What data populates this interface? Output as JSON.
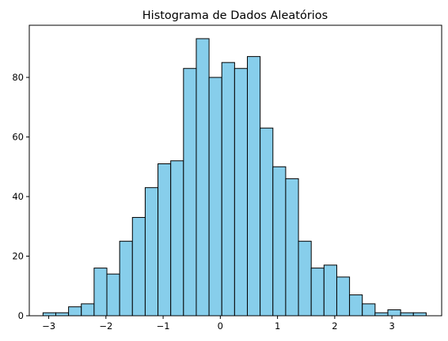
{
  "chart_data": {
    "type": "bar",
    "title": "Histograma de Dados Aleatórios",
    "xlabel": "",
    "ylabel": "",
    "xlim": [
      -3.34,
      3.87
    ],
    "ylim": [
      0,
      97.5
    ],
    "bin_start": -3.1,
    "bin_width": 0.2233,
    "counts": [
      1,
      1,
      3,
      4,
      16,
      14,
      25,
      33,
      43,
      51,
      52,
      83,
      93,
      80,
      85,
      83,
      87,
      63,
      50,
      46,
      25,
      16,
      17,
      13,
      7,
      4,
      1,
      2,
      1,
      1
    ],
    "x_ticks": [
      -3,
      -2,
      -1,
      0,
      1,
      2,
      3
    ],
    "x_tick_labels": [
      "−3",
      "−2",
      "−1",
      "0",
      "1",
      "2",
      "3"
    ],
    "y_ticks": [
      0,
      20,
      40,
      60,
      80
    ],
    "y_tick_labels": [
      "0",
      "20",
      "40",
      "60",
      "80"
    ],
    "grid": false,
    "legend": "none",
    "bar_color": "#87ceeb",
    "edge_color": "#000000"
  }
}
